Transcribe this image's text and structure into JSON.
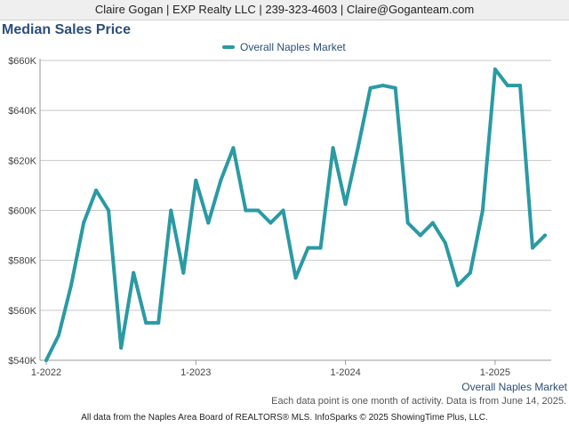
{
  "header": {
    "contact": "Claire Gogan | EXP Realty LLC | 239-323-4603 | Claire@Goganteam.com"
  },
  "chart_data": {
    "type": "line",
    "title": "Median Sales Price",
    "xlabel": "Overall Naples Market",
    "ylabel": "",
    "ylim": [
      540000,
      660000
    ],
    "y_ticks": [
      "$540K",
      "$560K",
      "$580K",
      "$600K",
      "$620K",
      "$640K",
      "$660K"
    ],
    "x_ticks": [
      "1-2022",
      "1-2023",
      "1-2024",
      "1-2025"
    ],
    "grid": true,
    "legend_position": "top",
    "colors": {
      "series": "#2a9aa3"
    },
    "x": [
      "1-2022",
      "2-2022",
      "3-2022",
      "4-2022",
      "5-2022",
      "6-2022",
      "7-2022",
      "8-2022",
      "9-2022",
      "10-2022",
      "11-2022",
      "12-2022",
      "1-2023",
      "2-2023",
      "3-2023",
      "4-2023",
      "5-2023",
      "6-2023",
      "7-2023",
      "8-2023",
      "9-2023",
      "10-2023",
      "11-2023",
      "12-2023",
      "1-2024",
      "2-2024",
      "3-2024",
      "4-2024",
      "5-2024",
      "6-2024",
      "7-2024",
      "8-2024",
      "9-2024",
      "10-2024",
      "11-2024",
      "12-2024",
      "1-2025",
      "2-2025",
      "3-2025",
      "4-2025",
      "5-2025"
    ],
    "series": [
      {
        "name": "Overall Naples Market",
        "values": [
          540000,
          550000,
          570000,
          595000,
          608000,
          600000,
          545000,
          575000,
          555000,
          555000,
          600000,
          575000,
          612000,
          595000,
          612000,
          625000,
          600000,
          600000,
          595000,
          600000,
          573000,
          585000,
          585000,
          625000,
          602500,
          625000,
          649000,
          650000,
          649000,
          595000,
          590000,
          595000,
          587000,
          570000,
          575000,
          600000,
          656500,
          650000,
          650000,
          585000,
          590000
        ]
      }
    ]
  },
  "notes": {
    "activity": "Each data point is one month of activity. Data is from June 14, 2025."
  },
  "footer": {
    "text": "All data from the Naples Area Board of REALTORS® MLS. InfoSparks © 2025 ShowingTime Plus, LLC."
  }
}
